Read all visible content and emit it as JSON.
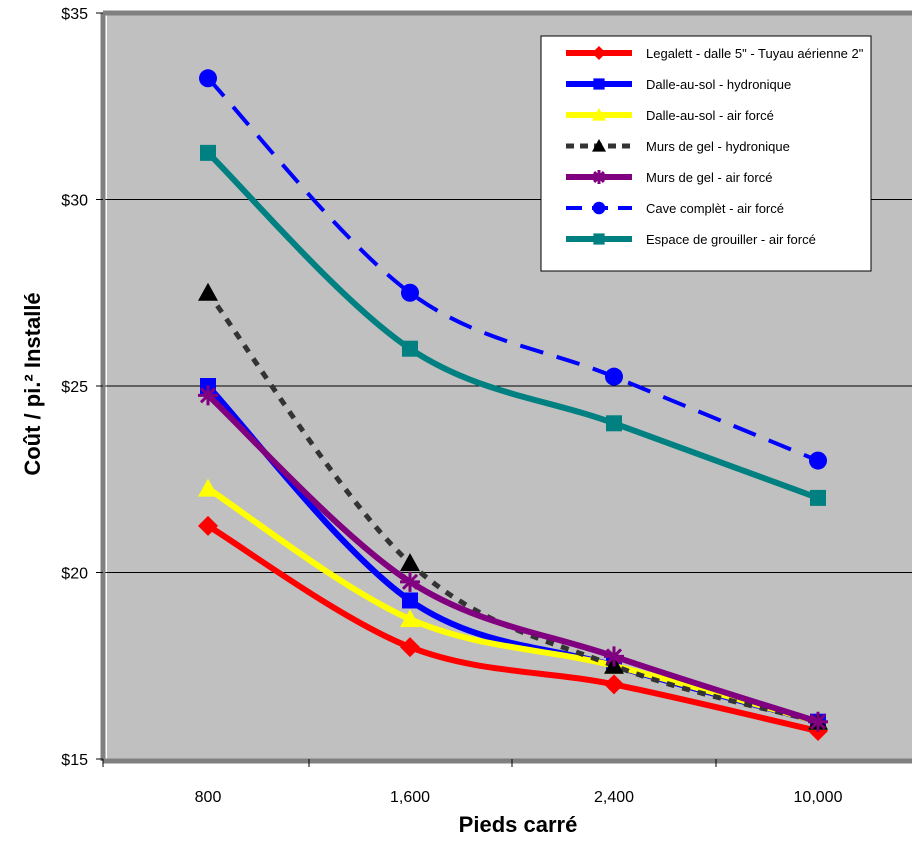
{
  "chart_data": {
    "type": "line",
    "categories": [
      "800",
      "1,600",
      "2,400",
      "10,000"
    ],
    "xlabel": "Pieds carré",
    "ylabel": "Coût / pi.² Installé",
    "ylim": [
      15,
      35
    ],
    "yticks": [
      "$15",
      "$20",
      "$25",
      "$30",
      "$35"
    ],
    "ytick_values": [
      15,
      20,
      25,
      30,
      35
    ],
    "grid": true,
    "legend_position": "top-right",
    "plot_background": "#c0c0c0",
    "series": [
      {
        "name": "Legalett - dalle 5\" - Tuyau aérienne 2\"",
        "values": [
          21.25,
          18.0,
          17.0,
          15.75
        ],
        "color": "#ff0000",
        "marker": "diamond",
        "dash": "solid"
      },
      {
        "name": "Dalle-au-sol - hydronique",
        "values": [
          25.0,
          19.25,
          17.5,
          16.0
        ],
        "color": "#0000ff",
        "marker": "square",
        "dash": "solid"
      },
      {
        "name": "Dalle-au-sol - air forcé",
        "values": [
          22.25,
          18.75,
          17.5,
          16.0
        ],
        "color": "#ffff00",
        "marker": "triangle",
        "dash": "solid"
      },
      {
        "name": "Murs de gel - hydronique",
        "values": [
          27.5,
          20.25,
          17.5,
          16.0
        ],
        "color": "#333333",
        "marker": "triangle",
        "dash": "dotted"
      },
      {
        "name": "Murs de gel - air forcé",
        "values": [
          24.75,
          19.75,
          17.75,
          16.0
        ],
        "color": "#800080",
        "marker": "star",
        "dash": "solid"
      },
      {
        "name": "Cave complèt - air forcé",
        "values": [
          33.25,
          27.5,
          25.25,
          23.0
        ],
        "color": "#0000ff",
        "marker": "circle",
        "dash": "dashed"
      },
      {
        "name": "Espace de grouiller - air forcé",
        "values": [
          31.25,
          26.0,
          24.0,
          22.0
        ],
        "color": "#008080",
        "marker": "square",
        "dash": "solid"
      }
    ]
  }
}
